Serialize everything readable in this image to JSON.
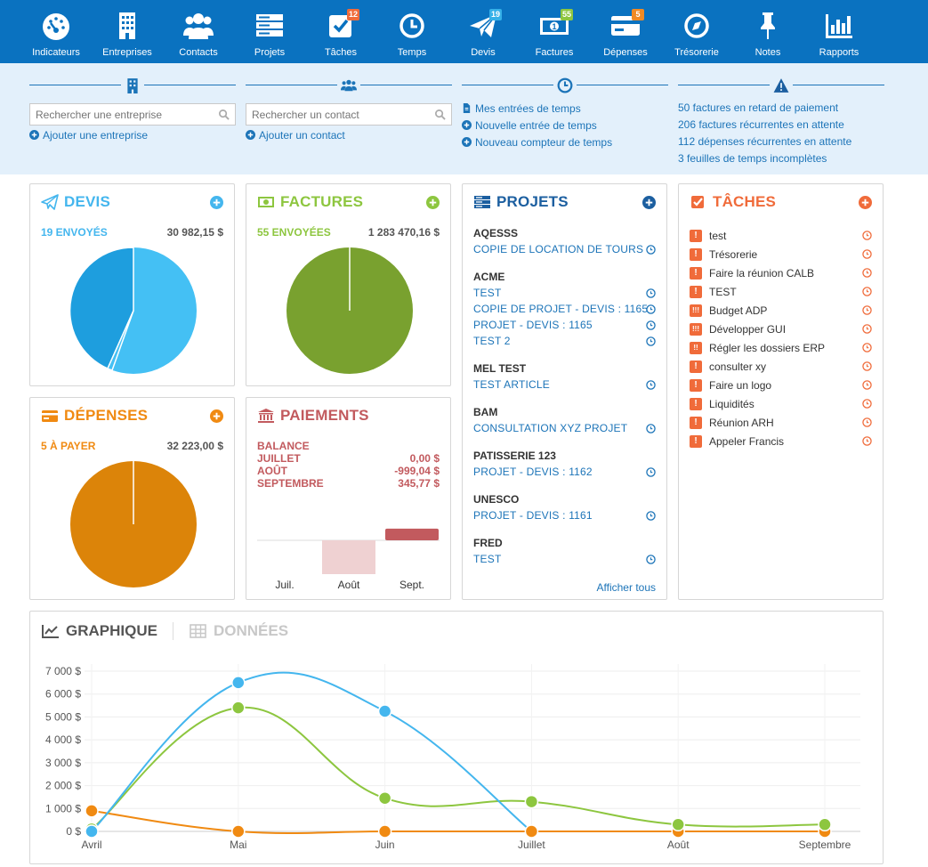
{
  "nav": {
    "items": [
      {
        "label": "Indicateurs",
        "icon": "gauge-icon",
        "badge": ""
      },
      {
        "label": "Entreprises",
        "icon": "building-icon",
        "badge": ""
      },
      {
        "label": "Contacts",
        "icon": "users-icon",
        "badge": ""
      },
      {
        "label": "Projets",
        "icon": "server-icon",
        "badge": ""
      },
      {
        "label": "Tâches",
        "icon": "checkbox-icon",
        "badge": "12"
      },
      {
        "label": "Temps",
        "icon": "clock-icon",
        "badge": ""
      },
      {
        "label": "Devis",
        "icon": "paper-plane-icon",
        "badge": "19"
      },
      {
        "label": "Factures",
        "icon": "money-icon",
        "badge": "55"
      },
      {
        "label": "Dépenses",
        "icon": "credit-card-icon",
        "badge": "5"
      },
      {
        "label": "Trésorerie",
        "icon": "compass-icon",
        "badge": ""
      },
      {
        "label": "Notes",
        "icon": "pin-icon",
        "badge": ""
      },
      {
        "label": "Rapports",
        "icon": "bar-chart-icon",
        "badge": ""
      }
    ]
  },
  "quick": {
    "company_search_placeholder": "Rechercher une entreprise",
    "add_company": "Ajouter une entreprise",
    "contact_search_placeholder": "Rechercher un contact",
    "add_contact": "Ajouter un contact",
    "time_links": [
      "Mes entrées de temps",
      "Nouvelle entrée de temps",
      "Nouveau compteur de temps"
    ],
    "alerts": [
      "50 factures en retard de paiement",
      "206 factures récurrentes en attente",
      "112 dépenses récurrentes en attente",
      "3 feuilles de temps incomplètes"
    ]
  },
  "devis": {
    "title": "DEVIS",
    "status": "19 ENVOYÉS",
    "amount": "30 982,15 $"
  },
  "factures": {
    "title": "FACTURES",
    "status": "55 ENVOYÉES",
    "amount": "1 283 470,16 $"
  },
  "depenses": {
    "title": "DÉPENSES",
    "status": "5 À PAYER",
    "amount": "32 223,00 $"
  },
  "paiements": {
    "title": "PAIEMENTS",
    "balance_label": "BALANCE",
    "rows": [
      {
        "label": "JUILLET",
        "value": "0,00 $"
      },
      {
        "label": "AOÛT",
        "value": "-999,04 $"
      },
      {
        "label": "SEPTEMBRE",
        "value": "345,77 $"
      }
    ],
    "bar_labels": [
      "Juil.",
      "Août",
      "Sept."
    ],
    "bar_values": [
      0,
      -999.04,
      345.77
    ]
  },
  "projets": {
    "title": "PROJETS",
    "groups": [
      {
        "client": "AQESSS",
        "items": [
          "COPIE DE  LOCATION DE TOURS"
        ]
      },
      {
        "client": "ACME",
        "items": [
          "TEST",
          "COPIE DE  PROJET - DEVIS : 1165",
          "PROJET - DEVIS : 1165",
          "TEST 2"
        ]
      },
      {
        "client": "MEL TEST",
        "items": [
          "TEST ARTICLE"
        ]
      },
      {
        "client": "BAM",
        "items": [
          "CONSULTATION XYZ PROJET"
        ]
      },
      {
        "client": "PATISSERIE 123",
        "items": [
          "PROJET - DEVIS : 1162"
        ]
      },
      {
        "client": "UNESCO",
        "items": [
          "PROJET - DEVIS : 1161"
        ]
      },
      {
        "client": "FRED",
        "items": [
          "TEST"
        ]
      }
    ],
    "show_all": "Afficher tous"
  },
  "taches": {
    "title": "TÂCHES",
    "items": [
      {
        "name": "test",
        "priority": "!"
      },
      {
        "name": "Trésorerie",
        "priority": "!"
      },
      {
        "name": "Faire la réunion CALB",
        "priority": "!"
      },
      {
        "name": "TEST",
        "priority": "!"
      },
      {
        "name": "Budget ADP",
        "priority": "!!!"
      },
      {
        "name": "Développer GUI",
        "priority": "!!!"
      },
      {
        "name": "Régler les dossiers ERP",
        "priority": "!!"
      },
      {
        "name": "consulter xy",
        "priority": "!"
      },
      {
        "name": "Faire un logo",
        "priority": "!"
      },
      {
        "name": "Liquidités",
        "priority": "!"
      },
      {
        "name": "Réunion ARH",
        "priority": "!"
      },
      {
        "name": "Appeler Francis",
        "priority": "!"
      }
    ]
  },
  "graph": {
    "tab_chart": "GRAPHIQUE",
    "tab_data": "DONNÉES"
  },
  "chart_data": {
    "type": "line",
    "x": [
      "Avril",
      "Mai",
      "Juin",
      "Juillet",
      "Août",
      "Septembre"
    ],
    "y_ticks": [
      "0 $",
      "1 000 $",
      "2 000 $",
      "3 000 $",
      "4 000 $",
      "5 000 $",
      "6 000 $",
      "7 000 $"
    ],
    "ylim": [
      0,
      7000
    ],
    "series": [
      {
        "values": [
          0,
          6500,
          5250,
          0,
          null,
          null
        ],
        "color": "#44b6ee"
      },
      {
        "values": [
          100,
          5400,
          1450,
          1300,
          300,
          300
        ],
        "color": "#8dc63f"
      },
      {
        "values": [
          900,
          0,
          0,
          0,
          0,
          0
        ],
        "color": "#f08a12"
      }
    ],
    "grid": true
  },
  "colors": {
    "nav_bg": "#0a72c0",
    "devis": "#44b6ee",
    "factures": "#79a12f",
    "depenses": "#dc8409",
    "paiements": "#c25a5e",
    "projets": "#1c5fa0",
    "taches": "#f06b3a"
  }
}
